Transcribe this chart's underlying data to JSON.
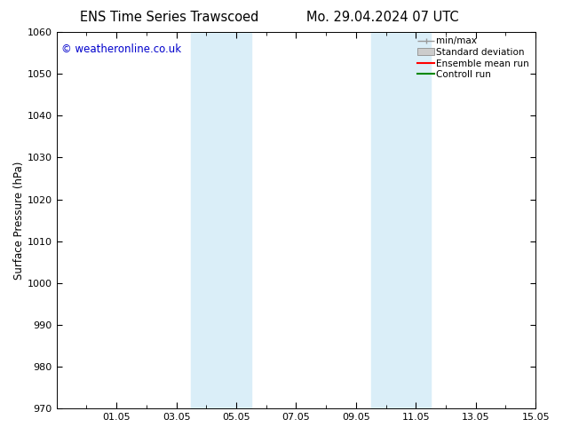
{
  "title_left": "ENS Time Series Trawscoed",
  "title_right": "Mo. 29.04.2024 07 UTC",
  "ylabel": "Surface Pressure (hPa)",
  "ylim": [
    970,
    1060
  ],
  "yticks": [
    970,
    980,
    990,
    1000,
    1010,
    1020,
    1030,
    1040,
    1050,
    1060
  ],
  "xlim_start": 0,
  "xlim_end": 16,
  "xtick_positions": [
    2,
    4,
    6,
    8,
    10,
    12,
    14,
    16
  ],
  "xtick_labels": [
    "01.05",
    "03.05",
    "05.05",
    "07.05",
    "09.05",
    "11.05",
    "13.05",
    "15.05"
  ],
  "shade_bands": [
    {
      "xmin": 4.5,
      "xmax": 6.5
    },
    {
      "xmin": 10.5,
      "xmax": 12.5
    }
  ],
  "shade_color": "#daeef8",
  "copyright_text": "© weatheronline.co.uk",
  "copyright_color": "#0000cc",
  "copyright_fontsize": 8.5,
  "background_color": "#ffffff",
  "plot_bg_color": "#ffffff",
  "title_fontsize": 10.5,
  "axis_label_fontsize": 8.5,
  "tick_fontsize": 8,
  "legend_entries": [
    "min/max",
    "Standard deviation",
    "Ensemble mean run",
    "Controll run"
  ],
  "legend_line_colors": [
    "#aaaaaa",
    "#bbbbbb",
    "#ff0000",
    "#008800"
  ],
  "minmax_color": "#999999",
  "std_facecolor": "#cccccc",
  "std_edgecolor": "#999999"
}
